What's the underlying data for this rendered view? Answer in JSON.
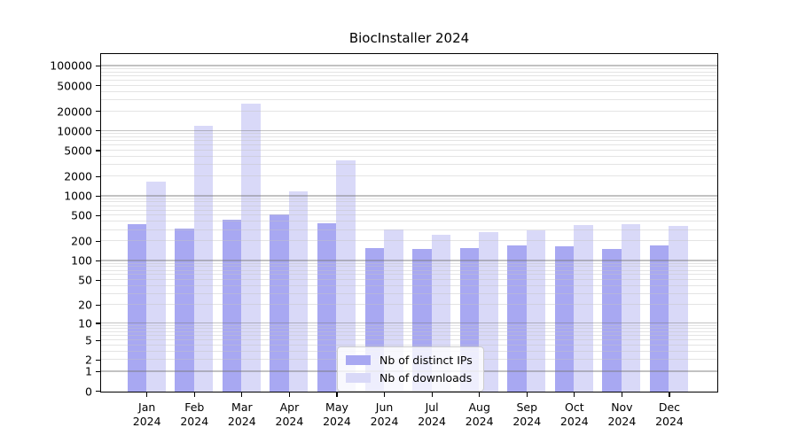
{
  "chart_data": {
    "type": "bar",
    "title": "BiocInstaller 2024",
    "categories": [
      "Jan 2024",
      "Feb 2024",
      "Mar 2024",
      "Apr 2024",
      "May 2024",
      "Jun 2024",
      "Jul 2024",
      "Aug 2024",
      "Sep 2024",
      "Oct 2024",
      "Nov 2024",
      "Dec 2024"
    ],
    "series": [
      {
        "name": "Nb of distinct IPs",
        "color": "#a8a8f2",
        "values": [
          375,
          318,
          440,
          537,
          388,
          159,
          154,
          158,
          176,
          170,
          154,
          178
        ]
      },
      {
        "name": "Nb of downloads",
        "color": "#d9d9f8",
        "values": [
          1700,
          12400,
          27000,
          1200,
          3560,
          315,
          254,
          280,
          300,
          363,
          379,
          352
        ]
      }
    ],
    "y_scale": "log10(1+x)",
    "y_ticks": [
      0,
      1,
      2,
      5,
      10,
      20,
      50,
      100,
      200,
      500,
      1000,
      2000,
      5000,
      10000,
      20000,
      50000,
      100000
    ],
    "ylim": [
      0,
      160000
    ],
    "grid": {
      "horizontal": true,
      "major_color": "#bdbdbd",
      "minor_color": "#e8e8e8"
    },
    "legend": {
      "position": "inside-bottom-center"
    },
    "xlabel": "",
    "ylabel": ""
  }
}
